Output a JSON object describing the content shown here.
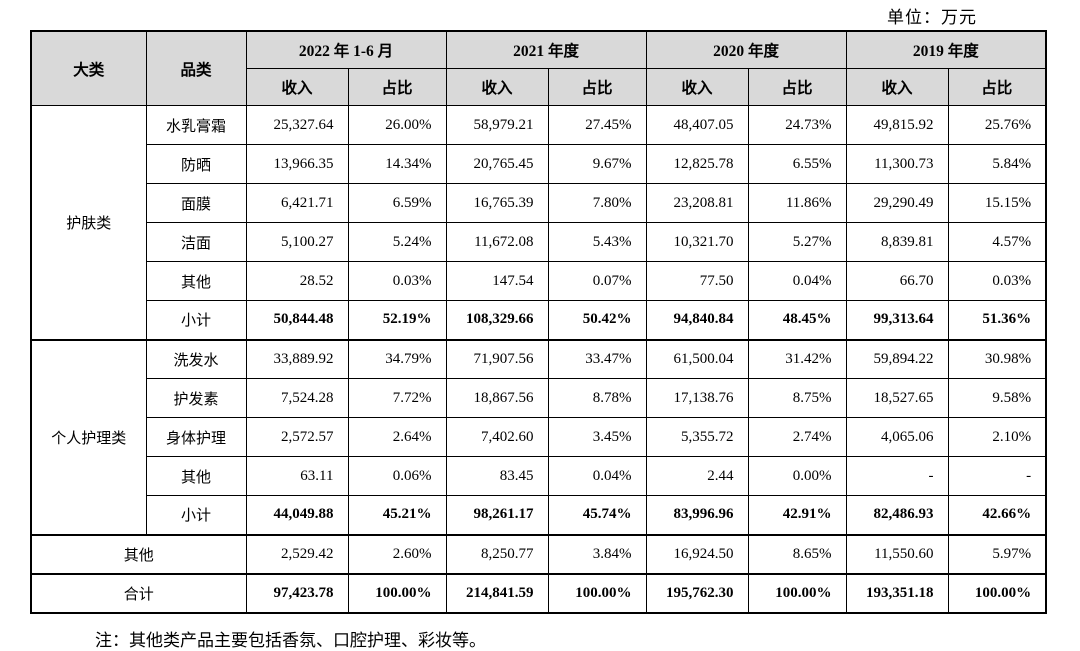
{
  "unit_label": "单位：万元",
  "table": {
    "header": {
      "col_major": "大类",
      "col_category": "品类",
      "periods": [
        {
          "label": "2022 年 1-6 月"
        },
        {
          "label": "2021 年度"
        },
        {
          "label": "2020 年度"
        },
        {
          "label": "2019 年度"
        }
      ],
      "sub_income": "收入",
      "sub_share": "占比"
    },
    "groups": [
      {
        "name": "护肤类",
        "rows": [
          {
            "label": "水乳膏霜",
            "bold": false,
            "values": [
              "25,327.64",
              "26.00%",
              "58,979.21",
              "27.45%",
              "48,407.05",
              "24.73%",
              "49,815.92",
              "25.76%"
            ]
          },
          {
            "label": "防晒",
            "bold": false,
            "values": [
              "13,966.35",
              "14.34%",
              "20,765.45",
              "9.67%",
              "12,825.78",
              "6.55%",
              "11,300.73",
              "5.84%"
            ]
          },
          {
            "label": "面膜",
            "bold": false,
            "values": [
              "6,421.71",
              "6.59%",
              "16,765.39",
              "7.80%",
              "23,208.81",
              "11.86%",
              "29,290.49",
              "15.15%"
            ]
          },
          {
            "label": "洁面",
            "bold": false,
            "values": [
              "5,100.27",
              "5.24%",
              "11,672.08",
              "5.43%",
              "10,321.70",
              "5.27%",
              "8,839.81",
              "4.57%"
            ]
          },
          {
            "label": "其他",
            "bold": false,
            "values": [
              "28.52",
              "0.03%",
              "147.54",
              "0.07%",
              "77.50",
              "0.04%",
              "66.70",
              "0.03%"
            ]
          },
          {
            "label": "小计",
            "bold": true,
            "values": [
              "50,844.48",
              "52.19%",
              "108,329.66",
              "50.42%",
              "94,840.84",
              "48.45%",
              "99,313.64",
              "51.36%"
            ]
          }
        ]
      },
      {
        "name": "个人护理类",
        "rows": [
          {
            "label": "洗发水",
            "bold": false,
            "values": [
              "33,889.92",
              "34.79%",
              "71,907.56",
              "33.47%",
              "61,500.04",
              "31.42%",
              "59,894.22",
              "30.98%"
            ]
          },
          {
            "label": "护发素",
            "bold": false,
            "values": [
              "7,524.28",
              "7.72%",
              "18,867.56",
              "8.78%",
              "17,138.76",
              "8.75%",
              "18,527.65",
              "9.58%"
            ]
          },
          {
            "label": "身体护理",
            "bold": false,
            "values": [
              "2,572.57",
              "2.64%",
              "7,402.60",
              "3.45%",
              "5,355.72",
              "2.74%",
              "4,065.06",
              "2.10%"
            ]
          },
          {
            "label": "其他",
            "bold": false,
            "values": [
              "63.11",
              "0.06%",
              "83.45",
              "0.04%",
              "2.44",
              "0.00%",
              "-",
              "-"
            ]
          },
          {
            "label": "小计",
            "bold": true,
            "values": [
              "44,049.88",
              "45.21%",
              "98,261.17",
              "45.74%",
              "83,996.96",
              "42.91%",
              "82,486.93",
              "42.66%"
            ]
          }
        ]
      }
    ],
    "other_row": {
      "label": "其他",
      "bold": false,
      "values": [
        "2,529.42",
        "2.60%",
        "8,250.77",
        "3.84%",
        "16,924.50",
        "8.65%",
        "11,550.60",
        "5.97%"
      ]
    },
    "total_row": {
      "label": "合计",
      "bold": true,
      "values": [
        "97,423.78",
        "100.00%",
        "214,841.59",
        "100.00%",
        "195,762.30",
        "100.00%",
        "193,351.18",
        "100.00%"
      ]
    }
  },
  "note": "注：其他类产品主要包括香氛、口腔护理、彩妆等。"
}
